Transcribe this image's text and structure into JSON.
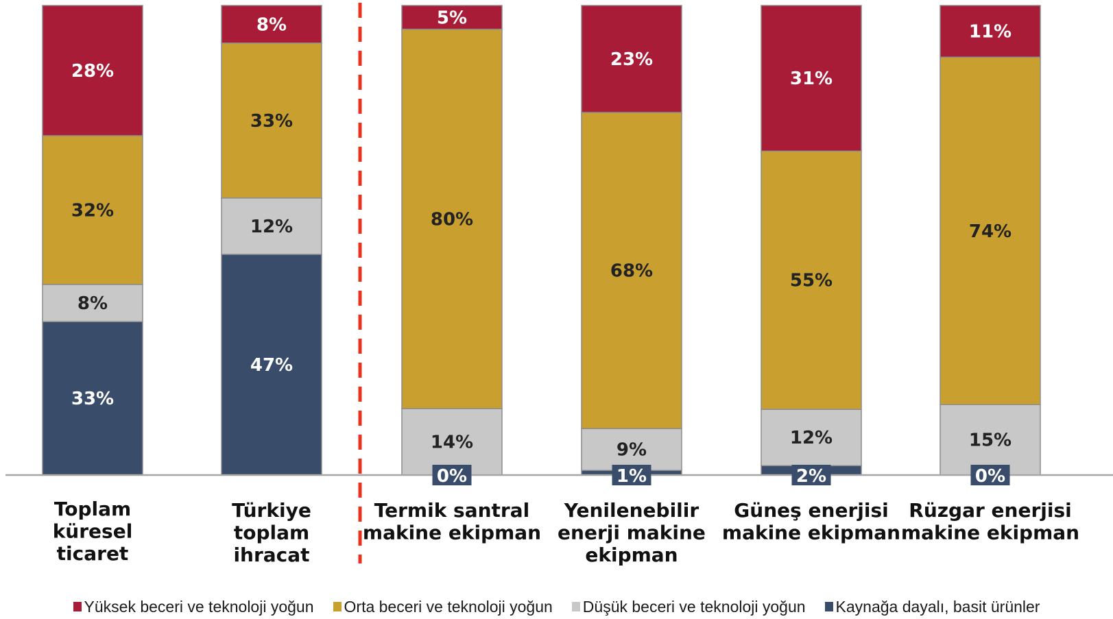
{
  "chart_data": {
    "type": "bar",
    "stacked": true,
    "percent": true,
    "categories": [
      [
        "Toplam",
        "küresel",
        "ticaret"
      ],
      [
        "Türkiye",
        "toplam",
        "ihracat"
      ],
      [
        "Termik santral",
        "makine ekipman"
      ],
      [
        "Yenilenebilir",
        "enerji makine",
        "ekipman"
      ],
      [
        "Güneş enerjisi",
        "makine ekipman"
      ],
      [
        "Rüzgar enerjisi",
        "makine ekipman"
      ]
    ],
    "series": [
      {
        "name": "Kaynağa dayalı, basit ürünler",
        "color": "#394d6b",
        "label_color": "#ffffff",
        "values": [
          33,
          47,
          0,
          1,
          2,
          0
        ]
      },
      {
        "name": "Düşük beceri ve teknoloji yoğun",
        "color": "#c8c8c8",
        "label_color": "#222222",
        "values": [
          8,
          12,
          14,
          9,
          12,
          15
        ]
      },
      {
        "name": "Orta beceri ve teknoloji yoğun",
        "color": "#c9a030",
        "label_color": "#222222",
        "values": [
          32,
          33,
          80,
          68,
          55,
          74
        ]
      },
      {
        "name": "Yüksek beceri ve teknoloji yoğun",
        "color": "#a81c37",
        "label_color": "#ffffff",
        "values": [
          28,
          8,
          5,
          23,
          31,
          11
        ]
      }
    ],
    "separator_after_index": 1,
    "separator_color": "#e8321e",
    "legend_position": "bottom",
    "ylim": [
      0,
      100
    ],
    "grid": false
  }
}
